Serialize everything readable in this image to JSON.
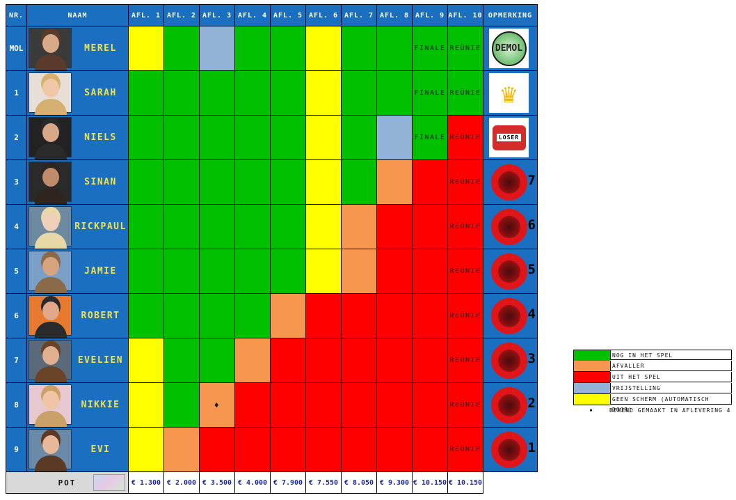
{
  "colors": {
    "in_game": "#00c000",
    "eliminated": "#f7974f",
    "out": "#ff0000",
    "exempt": "#94b3d9",
    "no_screen": "#ffff00",
    "header_bg": "#1b6fc0",
    "name_text": "#f2e24b"
  },
  "headers": [
    "NR.",
    "NAAM",
    "AFL. 1",
    "AFL. 2",
    "AFL. 3",
    "AFL. 4",
    "AFL. 5",
    "AFL. 6",
    "AFL. 7",
    "AFL. 8",
    "AFL. 9",
    "AFL. 10",
    "OPMERKING"
  ],
  "rows": [
    {
      "nr": "MOL",
      "name": "MEREL",
      "cells": [
        "Y",
        "G",
        "B",
        "G",
        "G",
        "Y",
        "G",
        "G",
        "G",
        "G"
      ],
      "text9": "FINALE",
      "text10": "REÜNIE",
      "remark": "mol",
      "rank": "",
      "photo": [
        "#d9a98a",
        "#5a3a2a",
        "#3a3a3a"
      ]
    },
    {
      "nr": "1",
      "name": "SARAH",
      "cells": [
        "G",
        "G",
        "G",
        "G",
        "G",
        "Y",
        "G",
        "G",
        "G",
        "G"
      ],
      "text9": "FINALE",
      "text10": "REÜNIE",
      "remark": "trophy",
      "rank": "",
      "photo": [
        "#f0c8a8",
        "#d6b070",
        "#e8e0d8"
      ]
    },
    {
      "nr": "2",
      "name": "NIELS",
      "cells": [
        "G",
        "G",
        "G",
        "G",
        "G",
        "Y",
        "G",
        "B",
        "G",
        "R"
      ],
      "text9": "FINALE",
      "text10": "REÜNIE",
      "remark": "loser",
      "rank": "",
      "photo": [
        "#d8a888",
        "#2a2a2a",
        "#222222"
      ]
    },
    {
      "nr": "3",
      "name": "SINAN",
      "cells": [
        "G",
        "G",
        "G",
        "G",
        "G",
        "Y",
        "G",
        "O",
        "R",
        "R"
      ],
      "text9": "",
      "text10": "REÜNIE",
      "remark": "ball",
      "rank": "7",
      "photo": [
        "#c08c6c",
        "#2e2420",
        "#2a2a2a"
      ]
    },
    {
      "nr": "4",
      "name": "RICKPAUL",
      "cells": [
        "G",
        "G",
        "G",
        "G",
        "G",
        "Y",
        "O",
        "R",
        "R",
        "R"
      ],
      "text9": "",
      "text10": "REÜNIE",
      "remark": "ball",
      "rank": "6",
      "photo": [
        "#f0d0b8",
        "#e8d8a8",
        "#6e8aa0"
      ]
    },
    {
      "nr": "5",
      "name": "JAMIE",
      "cells": [
        "G",
        "G",
        "G",
        "G",
        "G",
        "Y",
        "O",
        "R",
        "R",
        "R"
      ],
      "text9": "",
      "text10": "REÜNIE",
      "remark": "ball",
      "rank": "5",
      "photo": [
        "#d8a480",
        "#8a6a48",
        "#7aa0c8"
      ]
    },
    {
      "nr": "6",
      "name": "ROBERT",
      "cells": [
        "G",
        "G",
        "G",
        "G",
        "O",
        "R",
        "R",
        "R",
        "R",
        "R"
      ],
      "text9": "",
      "text10": "REÜNIE",
      "remark": "ball",
      "rank": "4",
      "photo": [
        "#e0a888",
        "#2a2a2a",
        "#e87a30"
      ]
    },
    {
      "nr": "7",
      "name": "EVELIEN",
      "cells": [
        "Y",
        "G",
        "G",
        "O",
        "R",
        "R",
        "R",
        "R",
        "R",
        "R"
      ],
      "text9": "",
      "text10": "REÜNIE",
      "remark": "ball",
      "rank": "3",
      "photo": [
        "#e0b090",
        "#6a4428",
        "#5a6a7a"
      ]
    },
    {
      "nr": "8",
      "name": "NIKKIE",
      "cells": [
        "Y",
        "G",
        "O",
        "R",
        "R",
        "R",
        "R",
        "R",
        "R",
        "R"
      ],
      "text9": "",
      "text10": "REÜNIE",
      "remark": "ball",
      "rank": "2",
      "mark3": "♦",
      "photo": [
        "#f0c4a4",
        "#c8a068",
        "#e8c8d0"
      ]
    },
    {
      "nr": "9",
      "name": "EVI",
      "cells": [
        "Y",
        "O",
        "R",
        "R",
        "R",
        "R",
        "R",
        "R",
        "R",
        "R"
      ],
      "text9": "",
      "text10": "REÜNIE",
      "remark": "ball",
      "rank": "1",
      "photo": [
        "#e8b898",
        "#5a3a24",
        "#6a8aa8"
      ]
    }
  ],
  "pot": {
    "label": "POT",
    "amounts": [
      "€ 1.300",
      "€ 2.000",
      "€ 3.500",
      "€ 4.000",
      "€ 7.900",
      "€ 7.550",
      "€ 8.050",
      "€ 9.300",
      "€ 10.150",
      "€ 10.150"
    ]
  },
  "remarks": {
    "mol_badge": "DEMOL",
    "loser_label": "LOSER"
  },
  "legend": [
    {
      "code": "G",
      "label": "NOG IN HET SPEL"
    },
    {
      "code": "O",
      "label": "AFVALLER"
    },
    {
      "code": "R",
      "label": "UIT HET SPEL"
    },
    {
      "code": "B",
      "label": "VRIJSTELLING"
    },
    {
      "code": "Y",
      "label": "GEEN SCHERM (AUTOMATISCH DOOR)"
    }
  ],
  "note": {
    "symbol": "♦",
    "label": "BEKEND GEMAAKT IN AFLEVERING 4"
  }
}
